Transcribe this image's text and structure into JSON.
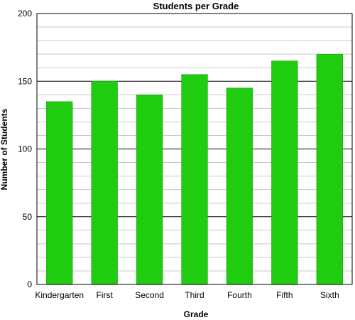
{
  "chart_data": {
    "type": "bar",
    "title": "Students per Grade",
    "xlabel": "Grade",
    "ylabel": "Number of Students",
    "categories": [
      "Kindergarten",
      "First",
      "Second",
      "Third",
      "Fourth",
      "Fifth",
      "Sixth"
    ],
    "values": [
      135,
      150,
      140,
      155,
      145,
      165,
      170
    ],
    "ylim": [
      0,
      200
    ],
    "yticks": [
      0,
      50,
      100,
      150,
      200
    ],
    "minor_grid_step": 10,
    "grid": true,
    "bar_color": "#1fcc0f",
    "bar_edge_color": "#179a0b"
  }
}
